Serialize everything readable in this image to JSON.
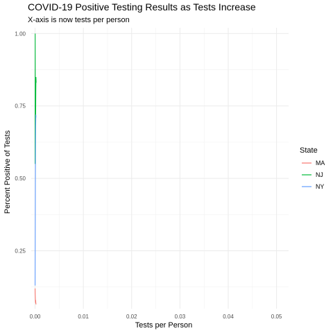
{
  "chart_data": {
    "type": "line",
    "title": "COVID-19 Positive Testing Results as Tests Increase",
    "subtitle": "X-axis is now tests per person",
    "xlabel": "Tests per Person",
    "ylabel": "Percent Positive of Tests",
    "xlim": [
      -0.0008,
      0.0525
    ],
    "ylim": [
      0.05,
      1.02
    ],
    "x_ticks": [
      0.0,
      0.01,
      0.02,
      0.03,
      0.04,
      0.05
    ],
    "x_tick_labels": [
      "0.00",
      "0.01",
      "0.02",
      "0.03",
      "0.04",
      "0.05"
    ],
    "y_ticks": [
      0.25,
      0.5,
      0.75,
      1.0
    ],
    "y_tick_labels": [
      "0.25",
      "0.50",
      "0.75",
      "1.00"
    ],
    "grid": true,
    "legend": {
      "title": "State",
      "placement": "right"
    },
    "series": [
      {
        "name": "MA",
        "color": "#F8766D",
        "x": [
          0.0,
          2e-05,
          4e-05,
          6e-05,
          8e-05,
          0.0001,
          0.00012,
          0.00015,
          0.0002
        ],
        "y": [
          0.12,
          0.1,
          0.09,
          0.08,
          0.075,
          0.07,
          0.08,
          0.07,
          0.065
        ]
      },
      {
        "name": "NJ",
        "color": "#00BA38",
        "x": [
          0.0,
          1e-05,
          2e-05,
          3e-05,
          4e-05,
          5e-05,
          6e-05,
          8e-05,
          0.0001,
          0.00012,
          0.00015,
          0.00018,
          0.00022
        ],
        "y": [
          0.55,
          0.7,
          1.0,
          0.9,
          0.75,
          0.8,
          0.7,
          0.78,
          0.85,
          0.72,
          0.8,
          0.85,
          0.83
        ]
      },
      {
        "name": "NY",
        "color": "#619CFF",
        "x": [
          0.0,
          2e-05,
          4e-05,
          6e-05,
          8e-05,
          0.0001,
          0.00012,
          0.00014,
          0.00016,
          0.00018
        ],
        "y": [
          0.13,
          0.22,
          0.35,
          0.48,
          0.57,
          0.63,
          0.68,
          0.7,
          0.72,
          0.71
        ]
      }
    ]
  }
}
